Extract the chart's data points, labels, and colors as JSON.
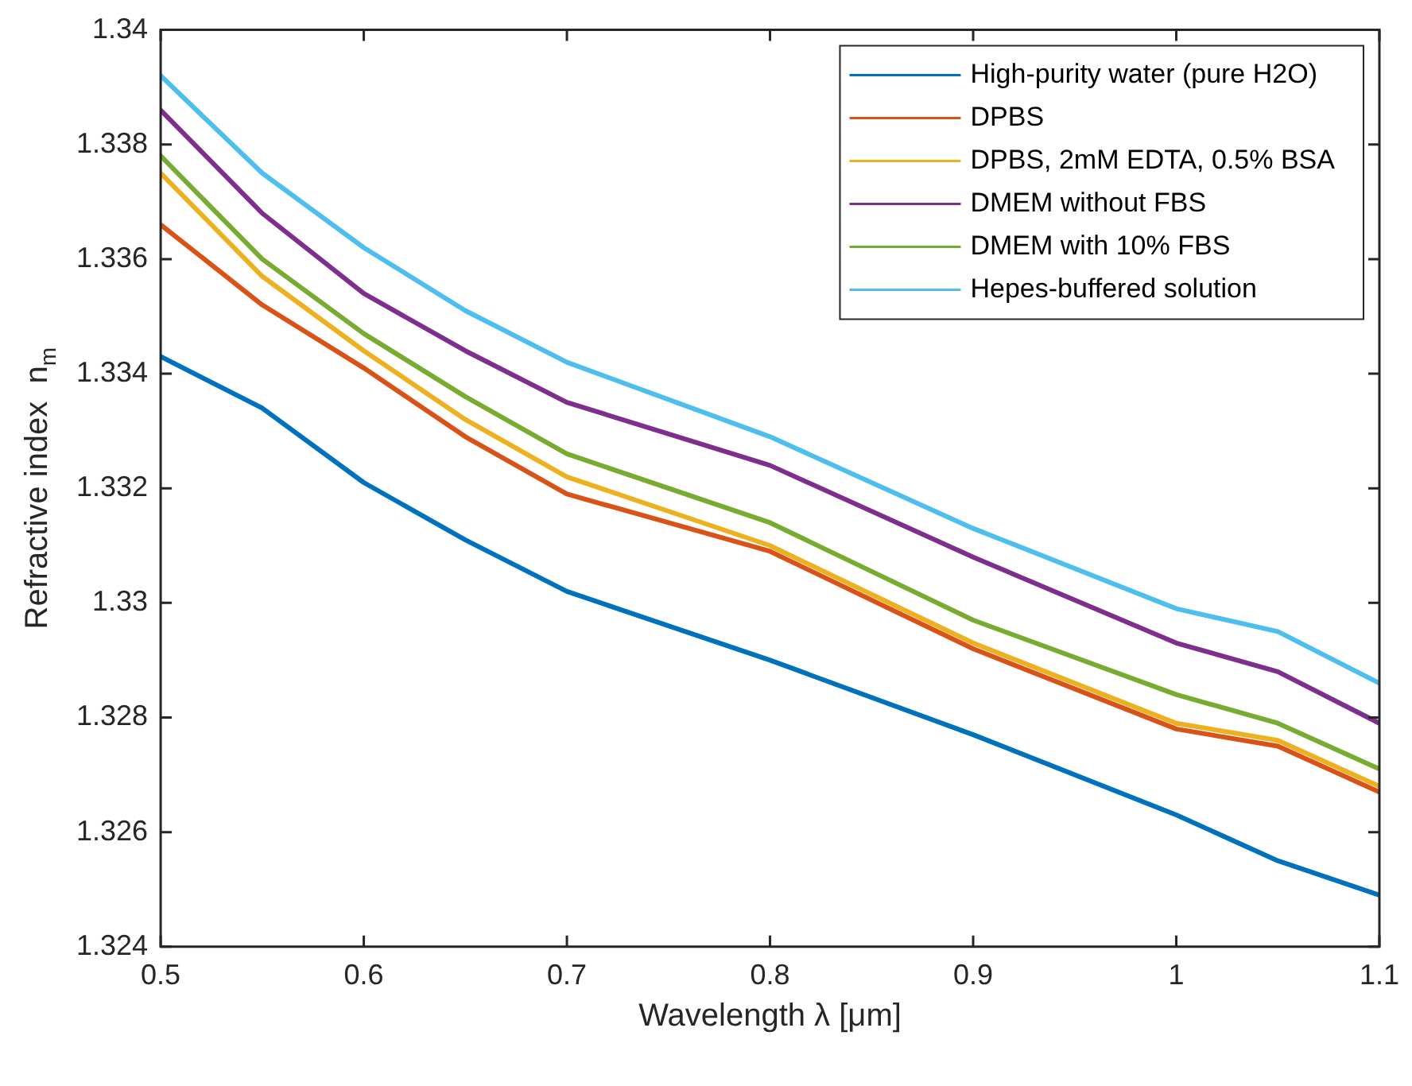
{
  "chart_data": {
    "type": "line",
    "xlabel": "Wavelength λ [μm]",
    "ylabel": "Refractive index  n$_{m}$",
    "x": [
      0.5,
      0.55,
      0.6,
      0.65,
      0.7,
      0.8,
      0.9,
      1.0,
      1.05,
      1.1
    ],
    "series": [
      {
        "name": "High-purity water (pure H2O)",
        "color": "#0072bd",
        "values": [
          1.3343,
          1.3334,
          1.3321,
          1.3311,
          1.3302,
          1.329,
          1.3277,
          1.3263,
          1.3255,
          1.3249
        ]
      },
      {
        "name": "DPBS",
        "color": "#d95319",
        "values": [
          1.3366,
          1.3352,
          1.3341,
          1.3329,
          1.3319,
          1.3309,
          1.3292,
          1.3278,
          1.3275,
          1.3267
        ]
      },
      {
        "name": "DPBS, 2mM EDTA, 0.5% BSA",
        "color": "#edb120",
        "values": [
          1.3375,
          1.3357,
          1.3344,
          1.3332,
          1.3322,
          1.331,
          1.3293,
          1.3279,
          1.3276,
          1.3268
        ]
      },
      {
        "name": "DMEM without FBS",
        "color": "#7e2f8e",
        "values": [
          1.3386,
          1.3368,
          1.3354,
          1.3344,
          1.3335,
          1.3324,
          1.3308,
          1.3293,
          1.3288,
          1.3279
        ]
      },
      {
        "name": "DMEM with 10% FBS",
        "color": "#77ac30",
        "values": [
          1.3378,
          1.336,
          1.3347,
          1.3336,
          1.3326,
          1.3314,
          1.3297,
          1.3284,
          1.3279,
          1.3271
        ]
      },
      {
        "name": "Hepes-buffered solution",
        "color": "#4dbeee",
        "values": [
          1.3392,
          1.3375,
          1.3362,
          1.3351,
          1.3342,
          1.3329,
          1.3313,
          1.3299,
          1.3295,
          1.3286
        ]
      }
    ],
    "xlim": [
      0.5,
      1.1
    ],
    "xticks": [
      0.5,
      0.6,
      0.7,
      0.8,
      0.9,
      1,
      1.1
    ],
    "ylim": [
      1.324,
      1.34
    ],
    "yticks": [
      1.324,
      1.326,
      1.328,
      1.33,
      1.332,
      1.334,
      1.336,
      1.338,
      1.34
    ],
    "grid": false,
    "legend": "top right",
    "marker": "none",
    "line_style": "solid"
  }
}
